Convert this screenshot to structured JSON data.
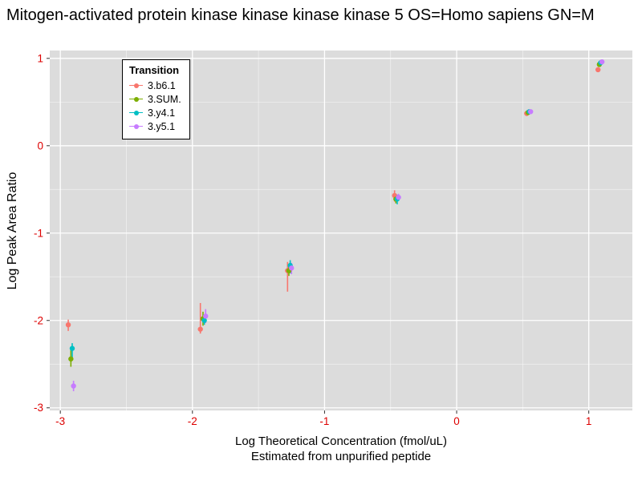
{
  "title": "Mitogen-activated protein kinase kinase kinase kinase 5 OS=Homo sapiens GN=M",
  "chart_data": {
    "type": "scatter",
    "title": "Mitogen-activated protein kinase kinase kinase kinase 5 OS=Homo sapiens GN=M",
    "xlabel": "Log Theoretical Concentration (fmol/uL)",
    "xlabel_sub": "Estimated from unpurified peptide",
    "ylabel": "Log Peak Area Ratio",
    "xlim": [
      -3.08,
      1.33
    ],
    "ylim": [
      -3.03,
      1.09
    ],
    "xticks": [
      -3,
      -2,
      -1,
      0,
      1
    ],
    "yticks": [
      1,
      0,
      -1,
      -2,
      -3
    ],
    "grid": true,
    "legend_title": "Transition",
    "legend_position": "top-left-inside",
    "panel_background": "#dcdcdc",
    "grid_color": "#ffffff",
    "axis_text_color": "#dd0000",
    "tick_color": "#333333",
    "series": [
      {
        "name": "3.b6.1",
        "color": "#F8766D",
        "points": [
          {
            "x": -2.94,
            "y": -2.05,
            "lo": -2.12,
            "hi": -1.99
          },
          {
            "x": -1.94,
            "y": -2.1,
            "lo": -2.15,
            "hi": -1.8
          },
          {
            "x": -1.28,
            "y": -1.43,
            "lo": -1.67,
            "hi": -1.33
          },
          {
            "x": -0.47,
            "y": -0.57,
            "lo": -0.64,
            "hi": -0.51
          },
          {
            "x": 0.53,
            "y": 0.37,
            "lo": 0.34,
            "hi": 0.4
          },
          {
            "x": 1.07,
            "y": 0.87,
            "lo": 0.85,
            "hi": 0.89
          }
        ]
      },
      {
        "name": "3.SUM.",
        "color": "#7CAE00",
        "points": [
          {
            "x": -2.92,
            "y": -2.44,
            "lo": -2.53,
            "hi": -2.34
          },
          {
            "x": -1.92,
            "y": -1.98,
            "lo": -2.06,
            "hi": -1.9
          },
          {
            "x": -1.27,
            "y": -1.43,
            "lo": -1.49,
            "hi": -1.37
          },
          {
            "x": -0.46,
            "y": -0.61,
            "lo": -0.66,
            "hi": -0.56
          },
          {
            "x": 0.54,
            "y": 0.38,
            "lo": 0.36,
            "hi": 0.4
          },
          {
            "x": 1.08,
            "y": 0.93,
            "lo": 0.91,
            "hi": 0.95
          }
        ]
      },
      {
        "name": "3.y4.1",
        "color": "#00BFC4",
        "points": [
          {
            "x": -2.91,
            "y": -2.32,
            "lo": -2.45,
            "hi": -2.26
          },
          {
            "x": -1.91,
            "y": -2.0,
            "lo": -2.05,
            "hi": -1.95
          },
          {
            "x": -1.26,
            "y": -1.37,
            "lo": -1.46,
            "hi": -1.31
          },
          {
            "x": -0.45,
            "y": -0.61,
            "lo": -0.67,
            "hi": -0.56
          },
          {
            "x": 0.55,
            "y": 0.39,
            "lo": 0.37,
            "hi": 0.41
          },
          {
            "x": 1.09,
            "y": 0.95,
            "lo": 0.93,
            "hi": 0.97
          }
        ]
      },
      {
        "name": "3.y5.1",
        "color": "#C77CFF",
        "points": [
          {
            "x": -2.9,
            "y": -2.75,
            "lo": -2.81,
            "hi": -2.69
          },
          {
            "x": -1.9,
            "y": -1.95,
            "lo": -2.03,
            "hi": -1.87
          },
          {
            "x": -1.25,
            "y": -1.4,
            "lo": -1.47,
            "hi": -1.34
          },
          {
            "x": -0.44,
            "y": -0.59,
            "lo": -0.63,
            "hi": -0.55
          },
          {
            "x": 0.56,
            "y": 0.39,
            "lo": 0.37,
            "hi": 0.41
          },
          {
            "x": 1.1,
            "y": 0.96,
            "lo": 0.94,
            "hi": 0.98
          }
        ]
      }
    ]
  }
}
